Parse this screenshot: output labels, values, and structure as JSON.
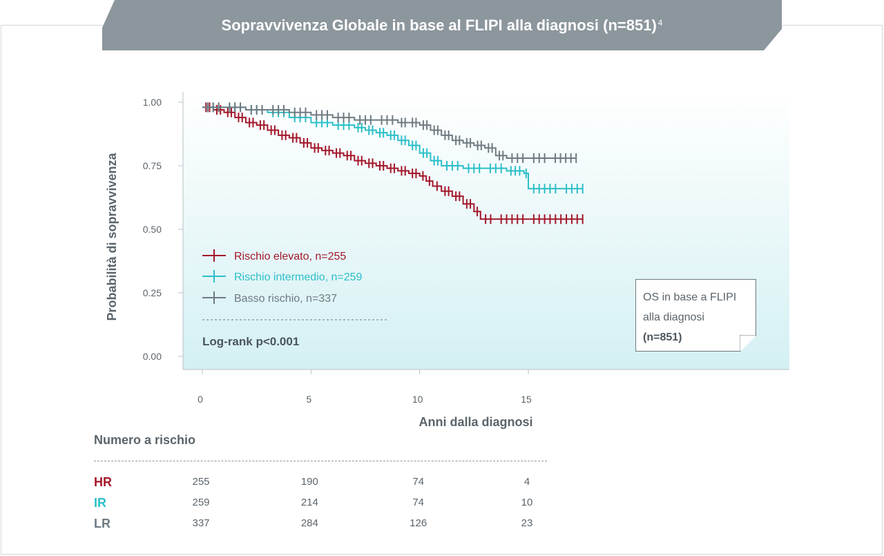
{
  "title": "Sopravvivenza Globale in base al FLIPI alla diagnosi (n=851)",
  "title_ref": "4",
  "colors": {
    "high": "#a3172a",
    "intermediate": "#2bbfc8",
    "low": "#6f7a81",
    "axis_text": "#5a646b",
    "banner": "#8c969d"
  },
  "legend": {
    "items": [
      {
        "label": "Rischio elevato, n=255",
        "color": "#a3172a"
      },
      {
        "label": "Rischio intermedio, n=259",
        "color": "#2bbfc8"
      },
      {
        "label": "Basso rischio, n=337",
        "color": "#6f7a81"
      }
    ],
    "stat": "Log-rank p<0.001"
  },
  "os_box": {
    "line1": "OS in base a FLIPI",
    "line2": "alla diagnosi",
    "line3": "(n=851)"
  },
  "chart_data": {
    "type": "line",
    "step": true,
    "title": "Sopravvivenza Globale in base al FLIPI alla diagnosi (n=851)",
    "xlabel": "Anni dalla diagnosi",
    "ylabel": "Probabilità di sopravvivenza",
    "xlim": [
      0,
      18
    ],
    "ylim": [
      0,
      1
    ],
    "xticks": [
      "0",
      "5",
      "10",
      "15"
    ],
    "yticks": [
      "0.00",
      "0.25",
      "0.50",
      "0.75",
      "1.00"
    ],
    "grid": false,
    "legend_position": "bottom-left",
    "series": [
      {
        "name": "Rischio elevato, n=255",
        "color": "#a3172a",
        "x": [
          0,
          0.5,
          1.0,
          1.5,
          2.0,
          2.5,
          3.0,
          3.5,
          4.0,
          4.5,
          5.0,
          5.5,
          6.0,
          6.5,
          7.0,
          7.5,
          8.0,
          8.5,
          9.0,
          9.5,
          10.0,
          10.3,
          10.6,
          11.0,
          11.5,
          12.0,
          12.5,
          12.8,
          13.5,
          15.0,
          17.5
        ],
        "y": [
          0.98,
          0.97,
          0.96,
          0.94,
          0.92,
          0.91,
          0.89,
          0.87,
          0.86,
          0.84,
          0.82,
          0.81,
          0.8,
          0.79,
          0.77,
          0.76,
          0.75,
          0.74,
          0.73,
          0.72,
          0.71,
          0.69,
          0.67,
          0.65,
          0.63,
          0.6,
          0.57,
          0.54,
          0.54,
          0.54,
          0.54
        ]
      },
      {
        "name": "Rischio intermedio, n=259",
        "color": "#2bbfc8",
        "x": [
          0,
          1.0,
          2.0,
          3.0,
          4.0,
          5.0,
          6.0,
          7.0,
          7.5,
          8.0,
          8.5,
          9.0,
          9.5,
          10.0,
          10.5,
          11.0,
          12.0,
          13.0,
          14.0,
          14.8,
          15.0,
          16.5,
          17.5
        ],
        "y": [
          0.98,
          0.98,
          0.97,
          0.96,
          0.94,
          0.92,
          0.91,
          0.9,
          0.89,
          0.88,
          0.87,
          0.85,
          0.83,
          0.8,
          0.77,
          0.75,
          0.74,
          0.74,
          0.73,
          0.72,
          0.66,
          0.66,
          0.66
        ]
      },
      {
        "name": "Basso rischio, n=337",
        "color": "#6f7a81",
        "x": [
          0,
          1.0,
          2.0,
          3.0,
          4.0,
          5.0,
          6.0,
          7.0,
          8.0,
          9.0,
          9.5,
          10.0,
          10.5,
          11.0,
          11.5,
          12.0,
          12.5,
          13.0,
          13.5,
          14.0,
          15.0,
          16.0,
          17.2
        ],
        "y": [
          0.98,
          0.98,
          0.97,
          0.97,
          0.96,
          0.95,
          0.94,
          0.93,
          0.93,
          0.92,
          0.92,
          0.91,
          0.89,
          0.87,
          0.85,
          0.84,
          0.83,
          0.82,
          0.79,
          0.78,
          0.78,
          0.78,
          0.78
        ]
      }
    ]
  },
  "risk_table": {
    "title": "Numero a rischio",
    "times": [
      0,
      5,
      10,
      15
    ],
    "rows": [
      {
        "label": "HR",
        "color": "#a3172a",
        "values": [
          "255",
          "190",
          "74",
          "4"
        ]
      },
      {
        "label": "IR",
        "color": "#2bbfc8",
        "values": [
          "259",
          "214",
          "74",
          "10"
        ]
      },
      {
        "label": "LR",
        "color": "#6f7a81",
        "values": [
          "337",
          "284",
          "126",
          "23"
        ]
      }
    ]
  }
}
